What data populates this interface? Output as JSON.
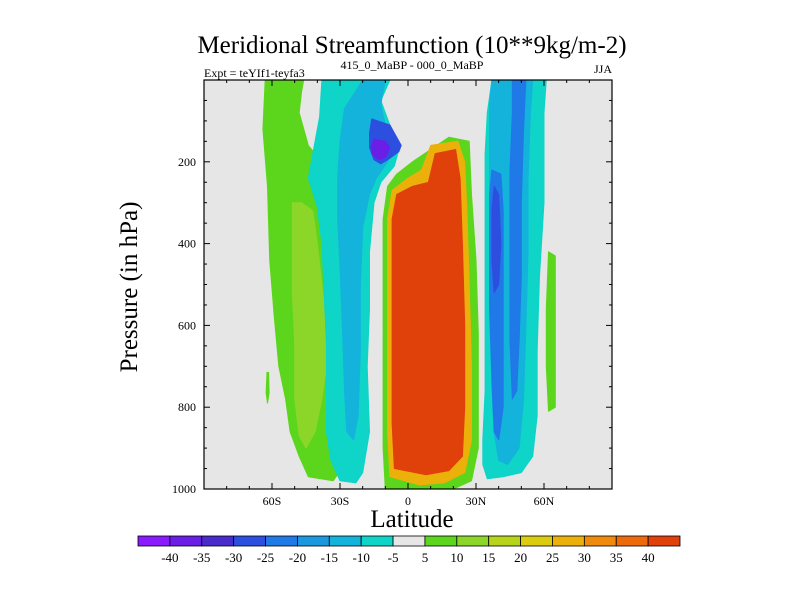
{
  "chart_data": {
    "type": "heatmap",
    "title": "Meridional Streamfunction (10**9kg/m-2)",
    "left_string": "Expt = teYIf1-teyfa3",
    "center_string": "415_0_MaBP - 000_0_MaBP",
    "right_string": "JJA",
    "xlabel": "Latitude",
    "ylabel": "Pressure (in hPa)",
    "xlim": [
      -90,
      90
    ],
    "ylim": [
      1000,
      0
    ],
    "xticks": [
      {
        "value": -60,
        "label": "60S"
      },
      {
        "value": -30,
        "label": "30S"
      },
      {
        "value": 0,
        "label": "0"
      },
      {
        "value": 30,
        "label": "30N"
      },
      {
        "value": 60,
        "label": "60N"
      }
    ],
    "yticks": [
      {
        "value": 200,
        "label": "200"
      },
      {
        "value": 400,
        "label": "400"
      },
      {
        "value": 600,
        "label": "600"
      },
      {
        "value": 800,
        "label": "800"
      },
      {
        "value": 1000,
        "label": "1000"
      }
    ],
    "colorbar": {
      "levels": [
        -40,
        -35,
        -30,
        -25,
        -20,
        -15,
        -10,
        -5,
        5,
        10,
        15,
        20,
        25,
        30,
        35,
        40
      ],
      "colors": [
        "#8c1aff",
        "#6a1ee6",
        "#4a2ccd",
        "#2d4fe0",
        "#1f79e6",
        "#1c98e0",
        "#14b3dc",
        "#0fd4c8",
        "#e6e6e6",
        "#5bd61c",
        "#8cd62a",
        "#b8d41a",
        "#dccc0f",
        "#ecb00a",
        "#f08a0a",
        "#ec6a0a",
        "#e0400a"
      ],
      "labels": [
        "-40",
        "-35",
        "-30",
        "-25",
        "-20",
        "-15",
        "-10",
        "-5",
        "5",
        "10",
        "15",
        "20",
        "25",
        "30",
        "35",
        "40"
      ]
    },
    "contour_regions": [
      {
        "id": "sh-outer-green",
        "value": 7,
        "polygon": [
          [
            -63,
            0
          ],
          [
            -46,
            0
          ],
          [
            -47,
            30
          ],
          [
            -48,
            80
          ],
          [
            -44,
            160
          ],
          [
            -38,
            200
          ],
          [
            -33,
            240
          ],
          [
            -33,
            300
          ],
          [
            -29,
            350
          ],
          [
            -26,
            480
          ],
          [
            -25,
            660
          ],
          [
            -26,
            860
          ],
          [
            -28,
            940
          ],
          [
            -33,
            980
          ],
          [
            -44,
            970
          ],
          [
            -48,
            920
          ],
          [
            -52,
            860
          ],
          [
            -54,
            780
          ],
          [
            -57,
            700
          ],
          [
            -59,
            580
          ],
          [
            -61,
            440
          ],
          [
            -62,
            260
          ],
          [
            -64,
            120
          ]
        ]
      },
      {
        "id": "sh-yellow-green-core",
        "value": 12,
        "polygon": [
          [
            -51,
            300
          ],
          [
            -47,
            300
          ],
          [
            -42,
            320
          ],
          [
            -40,
            400
          ],
          [
            -38,
            500
          ],
          [
            -36,
            600
          ],
          [
            -36,
            700
          ],
          [
            -38,
            780
          ],
          [
            -41,
            860
          ],
          [
            -45,
            900
          ],
          [
            -48,
            870
          ],
          [
            -50,
            780
          ],
          [
            -50,
            640
          ],
          [
            -51,
            520
          ],
          [
            -51,
            380
          ]
        ]
      },
      {
        "id": "sh-green-spot",
        "value": 7,
        "polygon": [
          [
            -62.2,
            715
          ],
          [
            -61.5,
            715
          ],
          [
            -61.3,
            765
          ],
          [
            -62,
            790
          ],
          [
            -62.6,
            765
          ]
        ]
      },
      {
        "id": "sh-cyan-outer",
        "value": -7,
        "polygon": [
          [
            -38,
            0
          ],
          [
            -8,
            0
          ],
          [
            -12,
            50
          ],
          [
            -8,
            110
          ],
          [
            -4,
            170
          ],
          [
            -6,
            210
          ],
          [
            -12,
            250
          ],
          [
            -15,
            300
          ],
          [
            -17,
            420
          ],
          [
            -17,
            560
          ],
          [
            -18,
            700
          ],
          [
            -17,
            860
          ],
          [
            -20,
            960
          ],
          [
            -23,
            985
          ],
          [
            -30,
            980
          ],
          [
            -34,
            930
          ],
          [
            -36,
            860
          ],
          [
            -36,
            760
          ],
          [
            -36,
            640
          ],
          [
            -37,
            520
          ],
          [
            -38,
            400
          ],
          [
            -40,
            310
          ],
          [
            -44,
            240
          ],
          [
            -42,
            180
          ],
          [
            -39,
            90
          ]
        ]
      },
      {
        "id": "sh-cyan-mid",
        "value": -12,
        "polygon": [
          [
            -20,
            0
          ],
          [
            -10,
            0
          ],
          [
            -12,
            60
          ],
          [
            -10,
            110
          ],
          [
            -7,
            165
          ],
          [
            -9,
            200
          ],
          [
            -14,
            240
          ],
          [
            -17,
            280
          ],
          [
            -20,
            360
          ],
          [
            -21,
            500
          ],
          [
            -21,
            660
          ],
          [
            -22,
            820
          ],
          [
            -24,
            880
          ],
          [
            -27,
            860
          ],
          [
            -28,
            760
          ],
          [
            -29,
            600
          ],
          [
            -30,
            460
          ],
          [
            -31,
            340
          ],
          [
            -31,
            240
          ],
          [
            -30,
            150
          ],
          [
            -28,
            70
          ]
        ]
      },
      {
        "id": "sh-blue-core",
        "value": -27,
        "polygon": [
          [
            -16,
            95
          ],
          [
            -8,
            110
          ],
          [
            -3,
            160
          ],
          [
            -4,
            175
          ],
          [
            -9,
            195
          ],
          [
            -12,
            205
          ],
          [
            -15,
            195
          ],
          [
            -17,
            165
          ],
          [
            -17,
            130
          ]
        ]
      },
      {
        "id": "sh-purple-core",
        "value": -38,
        "polygon": [
          [
            -15,
            145
          ],
          [
            -10,
            150
          ],
          [
            -8,
            165
          ],
          [
            -10,
            190
          ],
          [
            -13,
            195
          ],
          [
            -16,
            180
          ],
          [
            -16,
            160
          ]
        ]
      },
      {
        "id": "hadley-green-edge",
        "value": 7,
        "polygon": [
          [
            2,
            200
          ],
          [
            18,
            140
          ],
          [
            27,
            150
          ],
          [
            28,
            280
          ],
          [
            30,
            440
          ],
          [
            31,
            620
          ],
          [
            31,
            780
          ],
          [
            31,
            900
          ],
          [
            28,
            980
          ],
          [
            20,
            1000
          ],
          [
            -10,
            1000
          ],
          [
            -11,
            900
          ],
          [
            -11,
            700
          ],
          [
            -11,
            500
          ],
          [
            -11,
            340
          ],
          [
            -9,
            260
          ],
          [
            -5,
            230
          ]
        ]
      },
      {
        "id": "hadley-orange",
        "value": 28,
        "polygon": [
          [
            10,
            160
          ],
          [
            22,
            150
          ],
          [
            25,
            200
          ],
          [
            26,
            320
          ],
          [
            27,
            500
          ],
          [
            28,
            700
          ],
          [
            28,
            880
          ],
          [
            25,
            960
          ],
          [
            16,
            985
          ],
          [
            5,
            990
          ],
          [
            -8,
            970
          ],
          [
            -9,
            860
          ],
          [
            -9,
            660
          ],
          [
            -9,
            460
          ],
          [
            -9,
            340
          ],
          [
            -7,
            270
          ],
          [
            0,
            240
          ],
          [
            6,
            220
          ]
        ]
      },
      {
        "id": "hadley-red",
        "value": 42,
        "polygon": [
          [
            12,
            180
          ],
          [
            21,
            170
          ],
          [
            23,
            240
          ],
          [
            24,
            400
          ],
          [
            25,
            600
          ],
          [
            25,
            800
          ],
          [
            24,
            920
          ],
          [
            18,
            955
          ],
          [
            8,
            965
          ],
          [
            -6,
            950
          ],
          [
            -7,
            840
          ],
          [
            -7,
            640
          ],
          [
            -7,
            460
          ],
          [
            -7,
            340
          ],
          [
            -5,
            280
          ],
          [
            2,
            260
          ],
          [
            9,
            250
          ]
        ]
      },
      {
        "id": "nh-cyan-outer",
        "value": -7,
        "polygon": [
          [
            37,
            0
          ],
          [
            61,
            0
          ],
          [
            60,
            80
          ],
          [
            60,
            300
          ],
          [
            58,
            480
          ],
          [
            57,
            660
          ],
          [
            57,
            820
          ],
          [
            55,
            920
          ],
          [
            50,
            960
          ],
          [
            42,
            970
          ],
          [
            35,
            975
          ],
          [
            33,
            940
          ],
          [
            33,
            880
          ],
          [
            34,
            760
          ],
          [
            34,
            600
          ],
          [
            34,
            440
          ],
          [
            34,
            300
          ],
          [
            34,
            180
          ],
          [
            35,
            80
          ]
        ]
      },
      {
        "id": "nh-cyan-mid",
        "value": -13,
        "polygon": [
          [
            37,
            0
          ],
          [
            55,
            0
          ],
          [
            54,
            80
          ],
          [
            53,
            240
          ],
          [
            53,
            420
          ],
          [
            52,
            600
          ],
          [
            51,
            780
          ],
          [
            49,
            900
          ],
          [
            44,
            940
          ],
          [
            40,
            930
          ],
          [
            38,
            860
          ],
          [
            37,
            700
          ],
          [
            36,
            520
          ],
          [
            36,
            340
          ],
          [
            36,
            160
          ],
          [
            36,
            60
          ]
        ]
      },
      {
        "id": "nh-blue-a",
        "value": -25,
        "polygon": [
          [
            37,
            220
          ],
          [
            41,
            230
          ],
          [
            42,
            320
          ],
          [
            42,
            480
          ],
          [
            42,
            640
          ],
          [
            42,
            800
          ],
          [
            40,
            880
          ],
          [
            38,
            860
          ],
          [
            37,
            740
          ],
          [
            36,
            560
          ],
          [
            36,
            400
          ],
          [
            36,
            280
          ]
        ]
      },
      {
        "id": "nh-blue-b",
        "value": -30,
        "polygon": [
          [
            38,
            260
          ],
          [
            40,
            280
          ],
          [
            41,
            400
          ],
          [
            40,
            500
          ],
          [
            38,
            520
          ],
          [
            37,
            440
          ],
          [
            37,
            320
          ]
        ]
      },
      {
        "id": "nh-blue-c",
        "value": -22,
        "polygon": [
          [
            46,
            0
          ],
          [
            52,
            0
          ],
          [
            51,
            120
          ],
          [
            50,
            300
          ],
          [
            50,
            480
          ],
          [
            49,
            640
          ],
          [
            48,
            760
          ],
          [
            46,
            780
          ],
          [
            45,
            640
          ],
          [
            45,
            440
          ],
          [
            45,
            220
          ],
          [
            46,
            80
          ]
        ]
      },
      {
        "id": "nh-green-far",
        "value": 7,
        "polygon": [
          [
            62,
            420
          ],
          [
            65,
            430
          ],
          [
            65,
            560
          ],
          [
            65,
            700
          ],
          [
            65,
            800
          ],
          [
            62,
            810
          ],
          [
            61,
            700
          ],
          [
            61,
            560
          ]
        ]
      }
    ]
  }
}
